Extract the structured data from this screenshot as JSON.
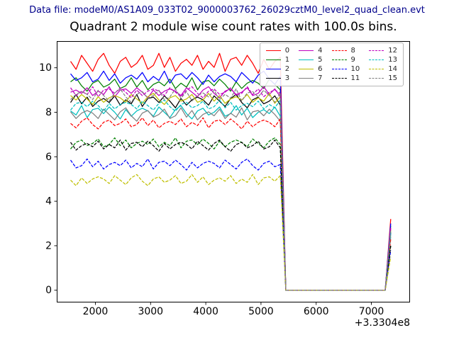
{
  "header": {
    "datafile_label": "Data file: modeM0/AS1A09_033T02_9000003762_26029cztM0_level2_quad_clean.evt",
    "datafile_color": "#00008b"
  },
  "chart_data": {
    "type": "line",
    "title": "Quadrant 2 module wise count rates with 100.0s bins.",
    "xlabel": "",
    "ylabel": "",
    "x_offset_label": "+3.3304e8",
    "xlim": [
      1300,
      7700
    ],
    "ylim": [
      -0.55,
      11.2
    ],
    "xticks": [
      2000,
      3000,
      4000,
      5000,
      6000,
      7000
    ],
    "yticks": [
      0,
      2,
      4,
      6,
      8,
      10
    ],
    "grid": false,
    "legend_position": "upper right",
    "legend_columns": 4,
    "axis_color": "#000000",
    "x": [
      1550,
      1650,
      1750,
      1850,
      1950,
      2050,
      2150,
      2250,
      2350,
      2450,
      2550,
      2650,
      2750,
      2850,
      2950,
      3050,
      3150,
      3250,
      3350,
      3450,
      3550,
      3650,
      3750,
      3850,
      3950,
      4050,
      4150,
      4250,
      4350,
      4450,
      4550,
      4650,
      4750,
      4850,
      4950,
      5050,
      5150,
      5250,
      5350,
      5450,
      5550,
      5650,
      5750,
      5850,
      5950,
      6050,
      6150,
      6250,
      6350,
      6450,
      6550,
      6650,
      6750,
      6850,
      6950,
      7050,
      7150,
      7250,
      7350
    ],
    "series": [
      {
        "name": "0",
        "color": "#ff0000",
        "style": "solid",
        "y": [
          10.29,
          9.93,
          10.56,
          10.2,
          9.84,
          10.38,
          10.65,
          10.11,
          9.75,
          10.29,
          10.47,
          10.02,
          10.2,
          10.56,
          9.93,
          10.11,
          10.65,
          10.02,
          10.47,
          9.84,
          10.2,
          10.38,
          10.11,
          10.56,
          9.93,
          10.29,
          10.02,
          10.65,
          9.84,
          10.38,
          10.47,
          10.11,
          10.56,
          10.2,
          9.75,
          10.38,
          9.93,
          10.29,
          10.47,
          0,
          0,
          0,
          0,
          0,
          0,
          0,
          0,
          0,
          0,
          0,
          0,
          0,
          0,
          0,
          0,
          0,
          0,
          0,
          3.2
        ]
      },
      {
        "name": "1",
        "color": "#008000",
        "style": "solid",
        "y": [
          9.37,
          9.55,
          9.19,
          8.95,
          9.31,
          9.43,
          9.13,
          9.25,
          9.49,
          9.07,
          9.19,
          9.55,
          9.13,
          9.43,
          9.01,
          9.25,
          9.37,
          9.19,
          9.49,
          9.07,
          9.31,
          9.13,
          9.55,
          9.01,
          9.37,
          9.43,
          9.19,
          9.49,
          9.25,
          8.95,
          9.37,
          9.07,
          9.31,
          9.43,
          9.31,
          9.07,
          9.49,
          9.25,
          9.01,
          0,
          0,
          0,
          0,
          0,
          0,
          0,
          0,
          0,
          0,
          0,
          0,
          0,
          0,
          0,
          0,
          0,
          0,
          0,
          2.9
        ]
      },
      {
        "name": "2",
        "color": "#0000ff",
        "style": "solid",
        "y": [
          9.73,
          9.43,
          9.55,
          9.79,
          9.37,
          9.49,
          9.85,
          9.43,
          9.73,
          9.31,
          9.55,
          9.67,
          9.49,
          9.79,
          9.37,
          9.61,
          9.43,
          9.85,
          9.31,
          9.67,
          9.73,
          9.49,
          9.79,
          9.55,
          9.25,
          9.67,
          9.37,
          9.61,
          9.73,
          9.61,
          9.37,
          9.79,
          9.55,
          9.31,
          9.67,
          9.85,
          9.49,
          9.25,
          9.61,
          0,
          0,
          0,
          0,
          0,
          0,
          0,
          0,
          0,
          0,
          0,
          0,
          0,
          0,
          0,
          0,
          0,
          0,
          0,
          3.0
        ]
      },
      {
        "name": "3",
        "color": "#000000",
        "style": "solid",
        "y": [
          8.44,
          8.8,
          8.38,
          8.68,
          8.26,
          8.5,
          8.62,
          8.44,
          8.74,
          8.32,
          8.56,
          8.38,
          8.8,
          8.26,
          8.62,
          8.68,
          8.44,
          8.74,
          8.5,
          8.2,
          8.62,
          8.32,
          8.56,
          8.68,
          8.56,
          8.32,
          8.74,
          8.5,
          8.26,
          8.62,
          8.8,
          8.44,
          8.2,
          8.56,
          8.68,
          8.38,
          8.5,
          8.74,
          8.32,
          0,
          0,
          0,
          0,
          0,
          0,
          0,
          0,
          0,
          0,
          0,
          0,
          0,
          0,
          0,
          0,
          0,
          0,
          0,
          2.6
        ]
      },
      {
        "name": "4",
        "color": "#bf00bf",
        "style": "solid",
        "y": [
          8.9,
          9.0,
          8.85,
          9.1,
          8.75,
          8.95,
          8.8,
          9.15,
          8.7,
          9.0,
          9.05,
          8.85,
          9.1,
          8.9,
          8.65,
          9.0,
          8.75,
          8.95,
          9.05,
          8.95,
          8.75,
          9.1,
          8.9,
          8.7,
          9.0,
          9.15,
          8.85,
          8.65,
          8.95,
          9.05,
          8.8,
          8.9,
          9.1,
          8.75,
          8.85,
          9.15,
          8.8,
          9.05,
          8.7,
          0,
          0,
          0,
          0,
          0,
          0,
          0,
          0,
          0,
          0,
          0,
          0,
          0,
          0,
          0,
          0,
          0,
          0,
          0,
          2.8
        ]
      },
      {
        "name": "5",
        "color": "#00bfbf",
        "style": "solid",
        "y": [
          8.06,
          7.88,
          8.3,
          7.76,
          8.12,
          8.18,
          7.94,
          8.24,
          8.0,
          7.7,
          8.12,
          7.82,
          8.06,
          8.18,
          8.06,
          7.82,
          8.24,
          8.0,
          7.76,
          8.12,
          8.3,
          7.94,
          7.7,
          8.06,
          8.18,
          7.88,
          8.0,
          8.24,
          7.82,
          7.94,
          8.3,
          7.88,
          8.18,
          7.76,
          8.0,
          8.12,
          7.94,
          8.24,
          7.82,
          0,
          0,
          0,
          0,
          0,
          0,
          0,
          0,
          0,
          0,
          0,
          0,
          0,
          0,
          0,
          0,
          0,
          0,
          0,
          2.5
        ]
      },
      {
        "name": "6",
        "color": "#bfbf00",
        "style": "solid",
        "y": [
          8.75,
          8.55,
          8.8,
          8.6,
          8.35,
          8.7,
          8.45,
          8.65,
          8.75,
          8.65,
          8.45,
          8.8,
          8.6,
          8.4,
          8.7,
          8.85,
          8.55,
          8.35,
          8.65,
          8.75,
          8.5,
          8.6,
          8.8,
          8.45,
          8.55,
          8.85,
          8.5,
          8.75,
          8.4,
          8.6,
          8.7,
          8.55,
          8.8,
          8.45,
          8.65,
          8.5,
          8.85,
          8.4,
          8.7,
          0,
          0,
          0,
          0,
          0,
          0,
          0,
          0,
          0,
          0,
          0,
          0,
          0,
          0,
          0,
          0,
          0,
          0,
          0,
          2.7
        ]
      },
      {
        "name": "7",
        "color": "#808080",
        "style": "solid",
        "y": [
          8.02,
          7.72,
          7.96,
          8.08,
          7.96,
          7.72,
          8.14,
          7.9,
          7.66,
          8.02,
          8.2,
          7.84,
          7.6,
          7.96,
          8.08,
          7.78,
          7.9,
          8.14,
          7.72,
          7.84,
          8.2,
          7.78,
          8.08,
          7.66,
          7.9,
          8.02,
          7.84,
          8.14,
          7.72,
          7.96,
          7.78,
          8.2,
          7.66,
          8.02,
          8.08,
          7.84,
          8.14,
          7.9,
          7.6,
          0,
          0,
          0,
          0,
          0,
          0,
          0,
          0,
          0,
          0,
          0,
          0,
          0,
          0,
          0,
          0,
          0,
          0,
          0,
          2.4
        ]
      },
      {
        "name": "8",
        "color": "#ff0000",
        "style": "dashed",
        "y": [
          7.5,
          7.3,
          7.6,
          7.75,
          7.45,
          7.25,
          7.55,
          7.65,
          7.4,
          7.5,
          7.7,
          7.35,
          7.45,
          7.75,
          7.4,
          7.65,
          7.3,
          7.5,
          7.6,
          7.45,
          7.7,
          7.35,
          7.55,
          7.4,
          7.75,
          7.3,
          7.6,
          7.65,
          7.45,
          7.7,
          7.5,
          7.25,
          7.6,
          7.35,
          7.55,
          7.65,
          7.55,
          7.35,
          7.7,
          0,
          0,
          0,
          0,
          0,
          0,
          0,
          0,
          0,
          0,
          0,
          0,
          0,
          0,
          0,
          0,
          0,
          0,
          0,
          2.3
        ]
      },
      {
        "name": "9",
        "color": "#008000",
        "style": "dashed",
        "y": [
          6.35,
          6.65,
          6.75,
          6.5,
          6.6,
          6.8,
          6.45,
          6.55,
          6.85,
          6.5,
          6.75,
          6.4,
          6.6,
          6.7,
          6.55,
          6.8,
          6.45,
          6.65,
          6.5,
          6.85,
          6.4,
          6.7,
          6.75,
          6.55,
          6.8,
          6.6,
          6.35,
          6.7,
          6.45,
          6.65,
          6.75,
          6.65,
          6.45,
          6.8,
          6.6,
          6.4,
          6.7,
          6.85,
          6.55,
          0,
          0,
          0,
          0,
          0,
          0,
          0,
          0,
          0,
          0,
          0,
          0,
          0,
          0,
          0,
          0,
          0,
          0,
          0,
          2.0
        ]
      },
      {
        "name": "10",
        "color": "#0000ff",
        "style": "dashed",
        "y": [
          5.85,
          5.5,
          5.6,
          5.9,
          5.55,
          5.8,
          5.45,
          5.65,
          5.75,
          5.6,
          5.85,
          5.5,
          5.7,
          5.55,
          5.9,
          5.45,
          5.75,
          5.8,
          5.6,
          5.85,
          5.65,
          5.4,
          5.75,
          5.5,
          5.7,
          5.8,
          5.7,
          5.5,
          5.85,
          5.65,
          5.45,
          5.75,
          5.9,
          5.6,
          5.4,
          5.7,
          5.8,
          5.55,
          5.65,
          0,
          0,
          0,
          0,
          0,
          0,
          0,
          0,
          0,
          0,
          0,
          0,
          0,
          0,
          0,
          0,
          0,
          0,
          0,
          1.8
        ]
      },
      {
        "name": "11",
        "color": "#000000",
        "style": "dashed",
        "y": [
          6.65,
          6.3,
          6.5,
          6.6,
          6.45,
          6.7,
          6.35,
          6.55,
          6.4,
          6.75,
          6.3,
          6.6,
          6.65,
          6.45,
          6.7,
          6.5,
          6.25,
          6.6,
          6.35,
          6.55,
          6.65,
          6.55,
          6.35,
          6.7,
          6.5,
          6.3,
          6.6,
          6.75,
          6.45,
          6.25,
          6.55,
          6.65,
          6.4,
          6.5,
          6.7,
          6.35,
          6.45,
          6.75,
          6.4,
          0,
          0,
          0,
          0,
          0,
          0,
          0,
          0,
          0,
          0,
          0,
          0,
          0,
          0,
          0,
          0,
          0,
          0,
          0,
          2.0
        ]
      },
      {
        "name": "12",
        "color": "#bf00bf",
        "style": "dashed",
        "y": [
          9.1,
          8.75,
          8.95,
          8.8,
          9.15,
          8.7,
          9.0,
          9.05,
          8.85,
          9.1,
          8.9,
          8.65,
          9.0,
          8.75,
          8.95,
          9.05,
          8.95,
          8.75,
          9.1,
          8.9,
          8.7,
          9.0,
          9.15,
          8.85,
          8.65,
          8.95,
          9.05,
          8.8,
          8.9,
          9.1,
          8.75,
          8.85,
          9.15,
          8.8,
          9.05,
          8.7,
          8.9,
          9.0,
          8.85,
          0,
          0,
          0,
          0,
          0,
          0,
          0,
          0,
          0,
          0,
          0,
          0,
          0,
          0,
          0,
          0,
          0,
          0,
          0,
          2.8
        ]
      },
      {
        "name": "13",
        "color": "#00bfbf",
        "style": "dashed",
        "y": [
          8.1,
          8.4,
          8.45,
          8.25,
          8.5,
          8.3,
          8.05,
          8.4,
          8.15,
          8.35,
          8.45,
          8.35,
          8.15,
          8.5,
          8.3,
          8.1,
          8.4,
          8.55,
          8.25,
          8.05,
          8.35,
          8.45,
          8.2,
          8.3,
          8.5,
          8.15,
          8.25,
          8.55,
          8.2,
          8.45,
          8.1,
          8.3,
          8.4,
          8.25,
          8.5,
          8.15,
          8.35,
          8.2,
          8.55,
          0,
          0,
          0,
          0,
          0,
          0,
          0,
          0,
          0,
          0,
          0,
          0,
          0,
          0,
          0,
          0,
          0,
          0,
          0,
          2.6
        ]
      },
      {
        "name": "14",
        "color": "#bfbf00",
        "style": "dashed",
        "y": [
          4.95,
          4.7,
          5.05,
          4.8,
          5.0,
          5.1,
          5.0,
          4.8,
          5.15,
          4.95,
          4.75,
          5.05,
          5.2,
          4.9,
          4.7,
          5.0,
          5.1,
          4.85,
          4.95,
          5.15,
          4.8,
          4.9,
          5.2,
          4.85,
          5.1,
          4.75,
          4.95,
          5.05,
          4.9,
          5.15,
          4.8,
          5.0,
          4.85,
          5.2,
          4.75,
          5.05,
          5.1,
          4.9,
          5.15,
          0,
          0,
          0,
          0,
          0,
          0,
          0,
          0,
          0,
          0,
          0,
          0,
          0,
          0,
          0,
          0,
          0,
          0,
          0,
          1.5
        ]
      },
      {
        "name": "15",
        "color": "#808080",
        "style": "dashed",
        "y": [
          8.57,
          8.81,
          8.93,
          8.81,
          8.57,
          8.99,
          8.75,
          8.51,
          8.87,
          9.05,
          8.69,
          8.45,
          8.81,
          8.93,
          8.63,
          8.75,
          8.99,
          8.57,
          8.69,
          9.05,
          8.63,
          8.93,
          8.51,
          8.75,
          8.87,
          8.69,
          8.99,
          8.57,
          8.81,
          8.63,
          9.05,
          8.51,
          8.87,
          8.93,
          8.69,
          8.99,
          8.75,
          8.45,
          8.87,
          0,
          0,
          0,
          0,
          0,
          0,
          0,
          0,
          0,
          0,
          0,
          0,
          0,
          0,
          0,
          0,
          0,
          0,
          0,
          2.7
        ]
      }
    ]
  }
}
